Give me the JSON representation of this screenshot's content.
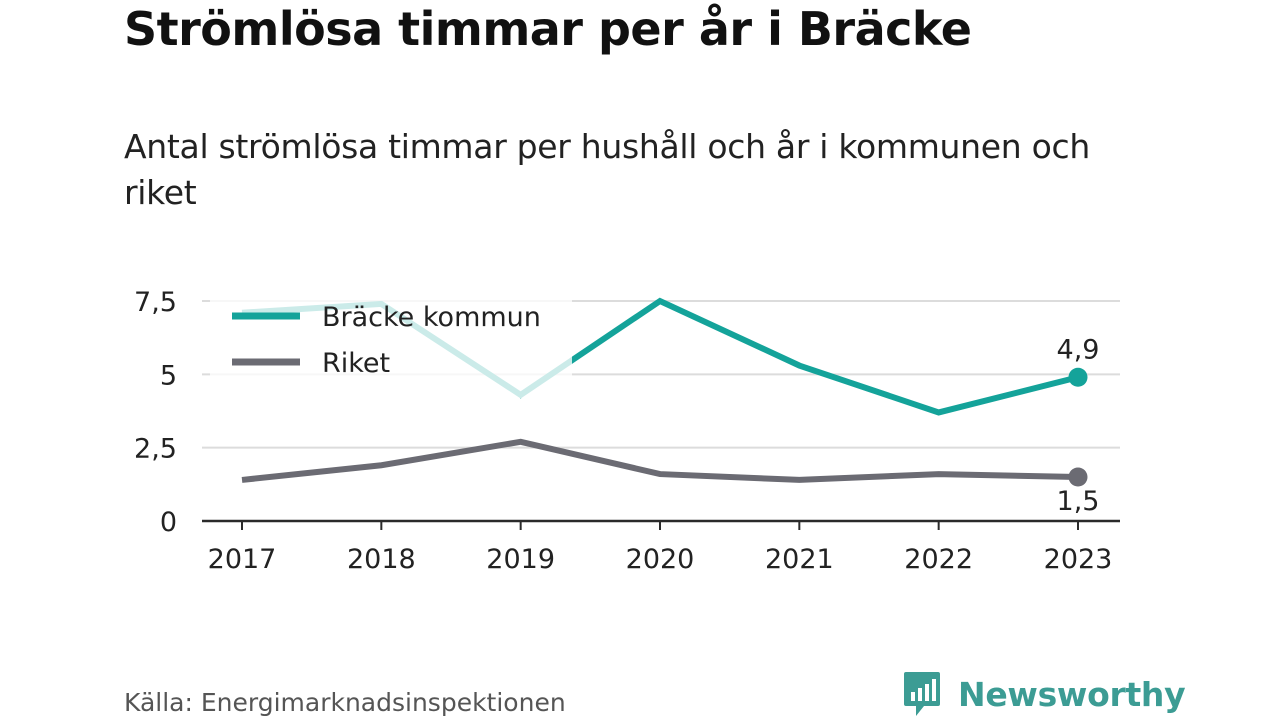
{
  "title": "Strömlösa timmar per år i Bräcke",
  "subtitle": "Antal strömlösa timmar per hushåll och år i kommunen och riket",
  "source": "Källa: Energimarknadsinspektionen",
  "logo": {
    "name": "Newsworthy",
    "icon": "bar-chart-speech-bubble-icon",
    "color": "#3c9c94"
  },
  "chart_data": {
    "type": "line",
    "x": [
      "2017",
      "2018",
      "2019",
      "2020",
      "2021",
      "2022",
      "2023"
    ],
    "ylim": [
      0,
      7.5
    ],
    "yticks": [
      0,
      2.5,
      5,
      7.5
    ],
    "ytick_labels": [
      "0",
      "2,5",
      "5",
      "7,5"
    ],
    "grid": true,
    "legend_placement": "top-left",
    "series": [
      {
        "name": "Bräcke kommun",
        "color": "#14a39a",
        "values": [
          7.1,
          7.4,
          4.3,
          7.5,
          5.3,
          3.7,
          4.9
        ],
        "end_label": "4,9"
      },
      {
        "name": "Riket",
        "color": "#6b6b73",
        "values": [
          1.4,
          1.9,
          2.7,
          1.6,
          1.4,
          1.6,
          1.5
        ],
        "end_label": "1,5"
      }
    ]
  }
}
